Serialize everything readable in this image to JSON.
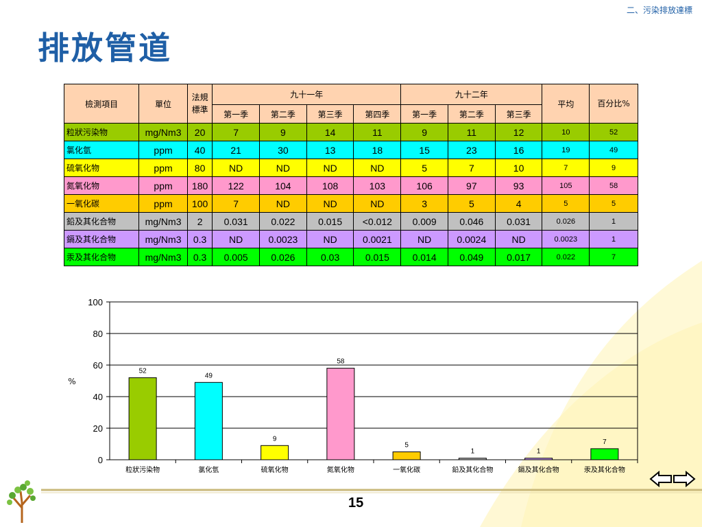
{
  "header": {
    "section_label": "二、污染排放達標",
    "title": "排放管道"
  },
  "table": {
    "head_item": "檢測項目",
    "head_unit": "單位",
    "head_standard": "法規標準",
    "year1": "九十一年",
    "year2": "九十二年",
    "head_avg": "平均",
    "head_pct": "百分比%",
    "quarters1": [
      "第一季",
      "第二季",
      "第三季",
      "第四季"
    ],
    "quarters2": [
      "第一季",
      "第二季",
      "第三季"
    ],
    "rows": [
      {
        "item": "粒狀污染物",
        "unit": "mg/Nm3",
        "std": "20",
        "q": [
          "7",
          "9",
          "14",
          "11",
          "9",
          "11",
          "12"
        ],
        "avg": "10",
        "pct": "52",
        "color": "#99cc00"
      },
      {
        "item": "氯化氫",
        "unit": "ppm",
        "std": "40",
        "q": [
          "21",
          "30",
          "13",
          "18",
          "15",
          "23",
          "16"
        ],
        "avg": "19",
        "pct": "49",
        "color": "#00ffff"
      },
      {
        "item": "硫氧化物",
        "unit": "ppm",
        "std": "80",
        "q": [
          "ND",
          "ND",
          "ND",
          "ND",
          "5",
          "7",
          "10"
        ],
        "avg": "7",
        "pct": "9",
        "color": "#ffff00"
      },
      {
        "item": "氮氧化物",
        "unit": "ppm",
        "std": "180",
        "q": [
          "122",
          "104",
          "108",
          "103",
          "106",
          "97",
          "93"
        ],
        "avg": "105",
        "pct": "58",
        "color": "#ff99cc"
      },
      {
        "item": "一氧化碳",
        "unit": "ppm",
        "std": "100",
        "q": [
          "7",
          "ND",
          "ND",
          "ND",
          "3",
          "5",
          "4"
        ],
        "avg": "5",
        "pct": "5",
        "color": "#ffcc00"
      },
      {
        "item": "鉛及其化合物",
        "unit": "mg/Nm3",
        "std": "2",
        "q": [
          "0.031",
          "0.022",
          "0.015",
          "<0.012",
          "0.009",
          "0.046",
          "0.031"
        ],
        "avg": "0.026",
        "pct": "1",
        "color": "#c0c0c0"
      },
      {
        "item": "鎘及其化合物",
        "unit": "mg/Nm3",
        "std": "0.3",
        "q": [
          "ND",
          "0.0023",
          "ND",
          "0.0021",
          "ND",
          "0.0024",
          "ND"
        ],
        "avg": "0.0023",
        "pct": "1",
        "color": "#cc99ff"
      },
      {
        "item": "汞及其化合物",
        "unit": "mg/Nm3",
        "std": "0.3",
        "q": [
          "0.005",
          "0.026",
          "0.03",
          "0.015",
          "0.014",
          "0.049",
          "0.017"
        ],
        "avg": "0.022",
        "pct": "7",
        "color": "#00ff00"
      }
    ]
  },
  "chart_data": {
    "type": "bar",
    "categories": [
      "粒狀污染物",
      "氯化氫",
      "硫氧化物",
      "氮氧化物",
      "一氧化碳",
      "鉛及其化合物",
      "鎘及其化合物",
      "汞及其化合物"
    ],
    "values": [
      52,
      49,
      9,
      58,
      5,
      1,
      1,
      7
    ],
    "colors": [
      "#99cc00",
      "#00ffff",
      "#ffff00",
      "#ff99cc",
      "#ffcc00",
      "#c0c0c0",
      "#cc99ff",
      "#00ff00"
    ],
    "ylabel": "%",
    "ylim": [
      0,
      100
    ],
    "yticks": [
      "0",
      "20",
      "40",
      "60",
      "80",
      "100"
    ],
    "grid": true
  },
  "footer": {
    "page_number": "15"
  }
}
